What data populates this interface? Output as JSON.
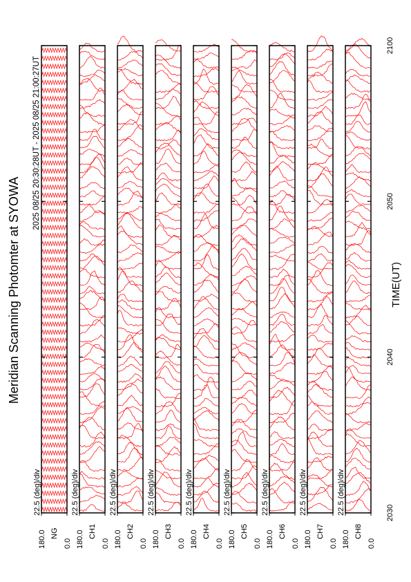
{
  "chart_data": {
    "type": "strip",
    "title": "Meridian Scanning Photomter at SYOWA",
    "subtitle": "2025 08/25 20:30:28UT - 2025 08/25 21:00:27UT",
    "xlabel": "TIME(UT)",
    "xlim": [
      0,
      30
    ],
    "xticks": [
      {
        "value": 0,
        "label": "2030"
      },
      {
        "value": 10,
        "label": "2040"
      },
      {
        "value": 20,
        "label": "2050"
      },
      {
        "value": 30,
        "label": "2100"
      }
    ],
    "ylim": [
      0,
      180
    ],
    "yticks": [
      {
        "value": 180,
        "label": "180.0"
      },
      {
        "value": 0,
        "label": "0.0"
      }
    ],
    "scale_label": "22.5 (deg)/div",
    "color": "#ff0000",
    "panels": [
      {
        "name": "NG"
      },
      {
        "name": "CH1"
      },
      {
        "name": "CH2"
      },
      {
        "name": "CH3"
      },
      {
        "name": "CH4"
      },
      {
        "name": "CH5"
      },
      {
        "name": "CH6"
      },
      {
        "name": "CH7"
      },
      {
        "name": "CH8"
      }
    ]
  }
}
